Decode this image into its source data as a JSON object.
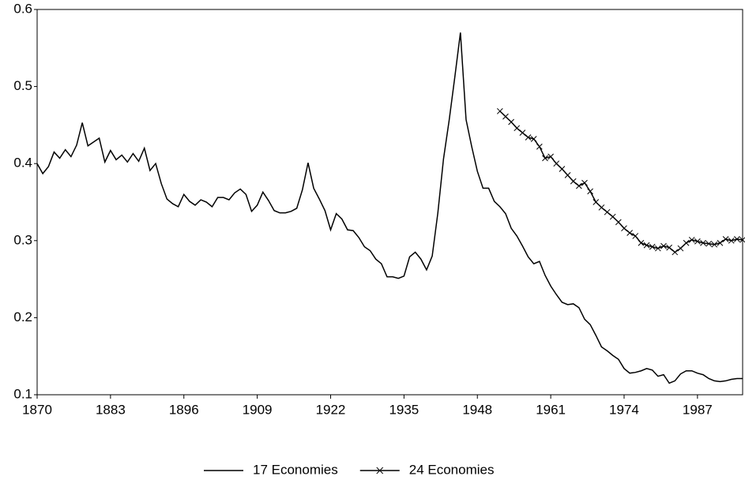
{
  "chart_data": {
    "type": "line",
    "xlim": [
      1870,
      1995
    ],
    "ylim": [
      0.1,
      0.6
    ],
    "xticks": [
      1870,
      1883,
      1896,
      1909,
      1922,
      1935,
      1948,
      1961,
      1974,
      1987
    ],
    "yticks": [
      0.1,
      0.2,
      0.3,
      0.4,
      0.5,
      0.6
    ],
    "legend": "bottom",
    "series": [
      {
        "name": "17 Economies",
        "color": "#000000",
        "marker": "none",
        "x": [
          1870,
          1871,
          1872,
          1873,
          1874,
          1875,
          1876,
          1877,
          1878,
          1879,
          1880,
          1881,
          1882,
          1883,
          1884,
          1885,
          1886,
          1887,
          1888,
          1889,
          1890,
          1891,
          1892,
          1893,
          1894,
          1895,
          1896,
          1897,
          1898,
          1899,
          1900,
          1901,
          1902,
          1903,
          1904,
          1905,
          1906,
          1907,
          1908,
          1909,
          1910,
          1911,
          1912,
          1913,
          1914,
          1915,
          1916,
          1917,
          1918,
          1919,
          1920,
          1921,
          1922,
          1923,
          1924,
          1925,
          1926,
          1927,
          1928,
          1929,
          1930,
          1931,
          1932,
          1933,
          1934,
          1935,
          1936,
          1937,
          1938,
          1939,
          1940,
          1941,
          1942,
          1943,
          1944,
          1945,
          1946,
          1947,
          1948,
          1949,
          1950,
          1951,
          1952,
          1953,
          1954,
          1955,
          1956,
          1957,
          1958,
          1959,
          1960,
          1961,
          1962,
          1963,
          1964,
          1965,
          1966,
          1967,
          1968,
          1969,
          1970,
          1971,
          1972,
          1973,
          1974,
          1975,
          1976,
          1977,
          1978,
          1979,
          1980,
          1981,
          1982,
          1983,
          1984,
          1985,
          1986,
          1987,
          1988,
          1989,
          1990,
          1991,
          1992,
          1993,
          1994,
          1995
        ],
        "values": [
          0.4,
          0.387,
          0.396,
          0.415,
          0.407,
          0.418,
          0.409,
          0.424,
          0.453,
          0.423,
          0.428,
          0.433,
          0.402,
          0.417,
          0.405,
          0.411,
          0.402,
          0.413,
          0.403,
          0.42,
          0.391,
          0.4,
          0.374,
          0.354,
          0.348,
          0.344,
          0.36,
          0.351,
          0.346,
          0.353,
          0.35,
          0.344,
          0.356,
          0.356,
          0.353,
          0.362,
          0.367,
          0.36,
          0.338,
          0.346,
          0.363,
          0.352,
          0.339,
          0.336,
          0.336,
          0.338,
          0.342,
          0.366,
          0.401,
          0.368,
          0.354,
          0.339,
          0.314,
          0.335,
          0.328,
          0.314,
          0.313,
          0.304,
          0.292,
          0.287,
          0.276,
          0.27,
          0.253,
          0.253,
          0.251,
          0.254,
          0.279,
          0.285,
          0.276,
          0.262,
          0.28,
          0.336,
          0.406,
          0.456,
          0.512,
          0.57,
          0.457,
          0.422,
          0.39,
          0.368,
          0.368,
          0.351,
          0.344,
          0.335,
          0.316,
          0.306,
          0.293,
          0.279,
          0.27,
          0.273,
          0.255,
          0.241,
          0.23,
          0.22,
          0.217,
          0.218,
          0.213,
          0.198,
          0.191,
          0.177,
          0.162,
          0.157,
          0.151,
          0.146,
          0.134,
          0.128,
          0.129,
          0.131,
          0.134,
          0.132,
          0.124,
          0.126,
          0.115,
          0.118,
          0.127,
          0.131,
          0.131,
          0.128,
          0.126,
          0.121,
          0.118,
          0.117,
          0.118,
          0.12,
          0.121,
          0.121
        ]
      },
      {
        "name": "24 Economies",
        "color": "#000000",
        "marker": "x",
        "x": [
          1952,
          1953,
          1954,
          1955,
          1956,
          1957,
          1958,
          1959,
          1960,
          1961,
          1962,
          1963,
          1964,
          1965,
          1966,
          1967,
          1968,
          1969,
          1970,
          1971,
          1972,
          1973,
          1974,
          1975,
          1976,
          1977,
          1978,
          1979,
          1980,
          1981,
          1982,
          1983,
          1984,
          1985,
          1986,
          1987,
          1988,
          1989,
          1990,
          1991,
          1992,
          1993,
          1994,
          1995
        ],
        "values": [
          0.468,
          0.461,
          0.454,
          0.446,
          0.44,
          0.434,
          0.432,
          0.422,
          0.407,
          0.409,
          0.4,
          0.393,
          0.385,
          0.377,
          0.371,
          0.375,
          0.364,
          0.35,
          0.343,
          0.337,
          0.331,
          0.324,
          0.316,
          0.31,
          0.306,
          0.297,
          0.294,
          0.292,
          0.29,
          0.293,
          0.291,
          0.285,
          0.29,
          0.297,
          0.301,
          0.299,
          0.297,
          0.296,
          0.295,
          0.297,
          0.302,
          0.3,
          0.302,
          0.301
        ]
      }
    ]
  }
}
